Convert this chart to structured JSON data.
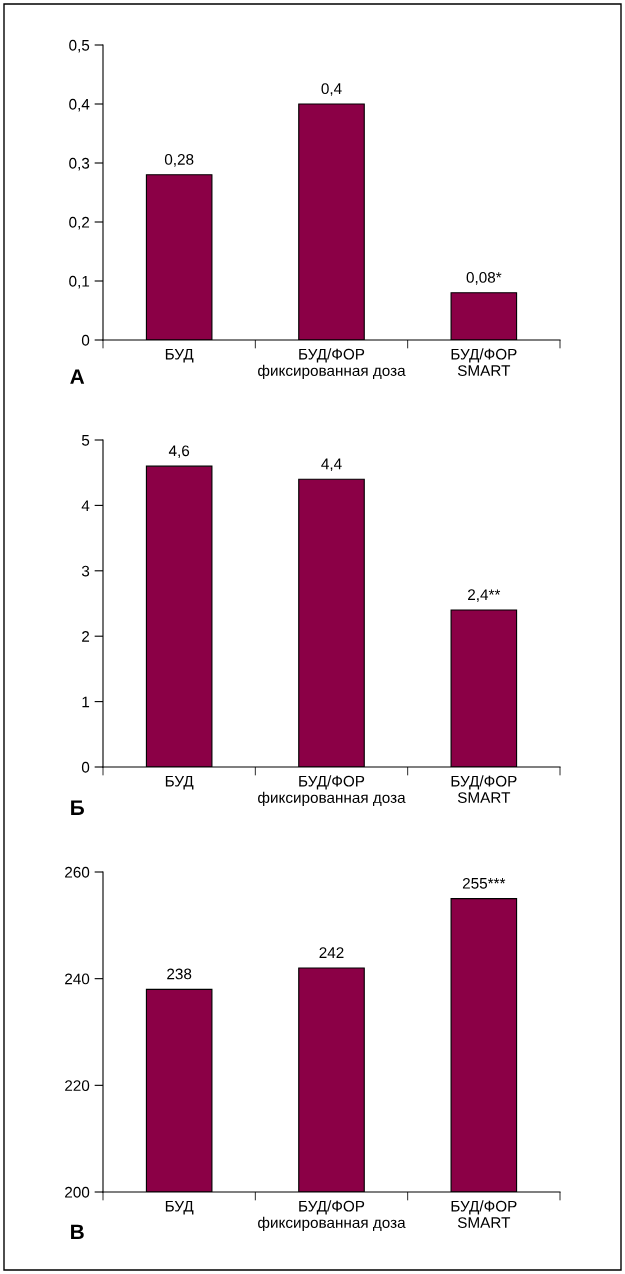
{
  "chart_data": [
    {
      "type": "bar",
      "categories": [
        "БУД",
        "БУД/ФОР\nфиксированная доза",
        "БУД/ФОР\nSMART"
      ],
      "values": [
        0.28,
        0.4,
        0.08
      ],
      "value_labels": [
        "0,28",
        "0,4",
        "0,08*"
      ],
      "color": "#8b0046",
      "ylim": [
        0,
        0.5
      ],
      "yticks": [
        {
          "value": 0,
          "label": "0"
        },
        {
          "value": 0.1,
          "label": "0,1"
        },
        {
          "value": 0.2,
          "label": "0,2"
        },
        {
          "value": 0.3,
          "label": "0,3"
        },
        {
          "value": 0.4,
          "label": "0,4"
        },
        {
          "value": 0.5,
          "label": "0,5"
        }
      ],
      "grid": false,
      "legend": false,
      "annotations": [
        "А"
      ]
    },
    {
      "type": "bar",
      "categories": [
        "БУД",
        "БУД/ФОР\nфиксированная доза",
        "БУД/ФОР\nSMART"
      ],
      "values": [
        4.6,
        4.4,
        2.4
      ],
      "value_labels": [
        "4,6",
        "4,4",
        "2,4**"
      ],
      "color": "#8b0046",
      "ylim": [
        0,
        5
      ],
      "yticks": [
        0,
        1,
        2,
        3,
        4,
        5
      ],
      "grid": false,
      "legend": false,
      "annotations": [
        "Б"
      ]
    },
    {
      "type": "bar",
      "categories": [
        "БУД",
        "БУД/ФОР\nфиксированная доза",
        "БУД/ФОР\nSMART"
      ],
      "values": [
        238,
        242,
        255
      ],
      "value_labels": [
        "238",
        "242",
        "255***"
      ],
      "color": "#8b0046",
      "ylim": [
        200,
        260
      ],
      "yticks": [
        200,
        220,
        240,
        260
      ],
      "grid": false,
      "legend": false,
      "annotations": [
        "В"
      ]
    }
  ]
}
